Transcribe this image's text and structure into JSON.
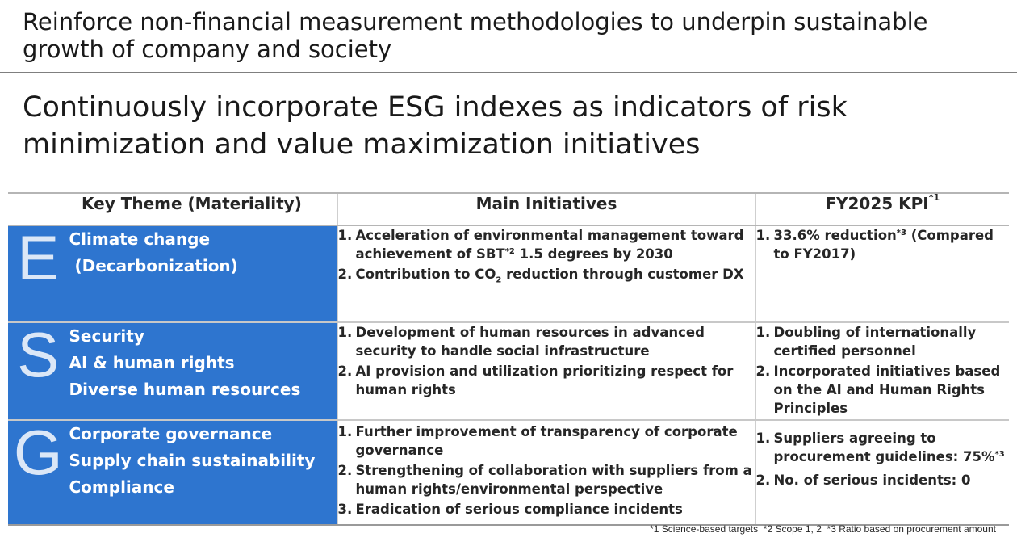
{
  "headline": "Reinforce non-financial measurement methodologies to underpin sustainable growth of company and society",
  "subheadline": "Continuously incorporate ESG indexes as indicators of risk minimization and value maximization initiatives",
  "table": {
    "headers": {
      "theme": "Key Theme (Materiality)",
      "initiatives": "Main Initiatives",
      "kpi": "FY2025 KPI",
      "kpi_note": "*1"
    },
    "rows": [
      {
        "letter": "E",
        "themes": [
          "Climate change",
          " (Decarbonization)"
        ],
        "initiatives": [
          {
            "num": "1.",
            "pre": "Acceleration of environmental management toward achievement of SBT",
            "sup": "*2",
            "post": " 1.5 degrees by 2030"
          },
          {
            "num": "2.",
            "pre": "Contribution to CO",
            "sub": "2",
            "post": " reduction through customer DX"
          }
        ],
        "kpis": [
          {
            "num": "1.",
            "pre": "33.6% reduction",
            "sup": "*3",
            "post": " (Compared to FY2017)"
          }
        ]
      },
      {
        "letter": "S",
        "themes": [
          "Security",
          "AI & human rights",
          "Diverse human resources"
        ],
        "initiatives": [
          {
            "num": "1.",
            "text": "Development of human resources in advanced security to handle social infrastructure"
          },
          {
            "num": "2.",
            "text": "AI provision and utilization prioritizing respect for human rights"
          }
        ],
        "kpis": [
          {
            "num": "1.",
            "text": "Doubling of internationally certified personnel"
          },
          {
            "num": "2.",
            "text": "Incorporated initiatives based on the AI and Human Rights Principles"
          }
        ]
      },
      {
        "letter": "G",
        "themes": [
          "Corporate governance",
          "Supply chain sustainability",
          "Compliance"
        ],
        "initiatives": [
          {
            "num": "1.",
            "text": "Further improvement of transparency of corporate governance"
          },
          {
            "num": "2.",
            "text": "Strengthening of collaboration with suppliers from a human rights/environmental perspective"
          },
          {
            "num": "3.",
            "text": "Eradication of serious compliance incidents"
          }
        ],
        "kpis": [
          {
            "num": "1.",
            "pre": "Suppliers agreeing to procurement guidelines: 75%",
            "sup": "*3",
            "post": ""
          },
          {
            "num": "2.",
            "text": "No. of serious incidents: 0"
          }
        ]
      }
    ]
  },
  "footnote": "*1 Science-based targets  *2 Scope 1, 2  *3 Ratio based on procurement amount",
  "colors": {
    "accent_blue": "#2e75cf",
    "letter_tint": "#dbe7f7"
  }
}
